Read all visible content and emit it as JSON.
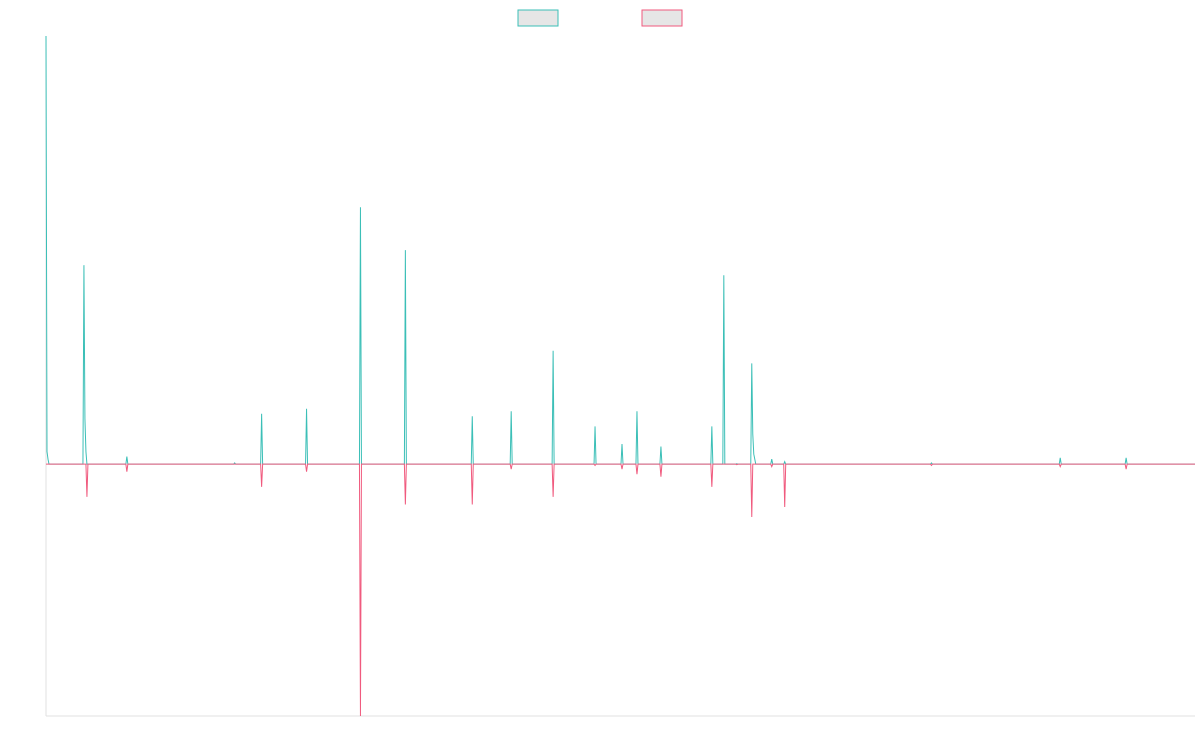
{
  "chart_data": {
    "type": "line",
    "title": "",
    "xlabel": "",
    "ylabel": "",
    "grid": false,
    "legend_position": "top-center",
    "colors": {
      "series_1_stroke": "#3bbfb7",
      "series_2_stroke": "#f05a7e",
      "legend_fill": "#e6e6e6",
      "axis": "#e0e0e0"
    },
    "x_count": 1152,
    "ylim": [
      -1.0,
      1.7
    ],
    "series": [
      {
        "name": "",
        "color": "#3bbfb7",
        "baseline": 0,
        "spikes": [
          [
            0,
            1.7
          ],
          [
            1,
            0.05
          ],
          [
            2,
            0.02
          ],
          [
            38,
            0.79
          ],
          [
            39,
            0.18
          ],
          [
            40,
            0.05
          ],
          [
            81,
            0.03
          ],
          [
            189,
            0.005
          ],
          [
            216,
            0.2
          ],
          [
            261,
            0.22
          ],
          [
            315,
            1.02
          ],
          [
            360,
            0.85
          ],
          [
            427,
            0.19
          ],
          [
            466,
            0.21
          ],
          [
            508,
            0.45
          ],
          [
            550,
            0.15
          ],
          [
            577,
            0.08
          ],
          [
            592,
            0.21
          ],
          [
            616,
            0.07
          ],
          [
            667,
            0.15
          ],
          [
            679,
            0.75
          ],
          [
            692,
            0.002
          ],
          [
            707,
            0.4
          ],
          [
            708,
            0.12
          ],
          [
            709,
            0.04
          ],
          [
            710,
            0.02
          ],
          [
            727,
            0.02
          ],
          [
            740,
            0.01
          ],
          [
            887,
            0.005
          ],
          [
            1016,
            0.025
          ],
          [
            1082,
            0.025
          ]
        ]
      },
      {
        "name": "",
        "color": "#f05a7e",
        "baseline": 0,
        "spikes": [
          [
            41,
            -0.13
          ],
          [
            81,
            -0.03
          ],
          [
            216,
            -0.09
          ],
          [
            261,
            -0.03
          ],
          [
            315,
            -1.0
          ],
          [
            360,
            -0.16
          ],
          [
            427,
            -0.16
          ],
          [
            466,
            -0.02
          ],
          [
            508,
            -0.13
          ],
          [
            550,
            -0.005
          ],
          [
            577,
            -0.02
          ],
          [
            592,
            -0.04
          ],
          [
            616,
            -0.05
          ],
          [
            667,
            -0.09
          ],
          [
            692,
            -0.002
          ],
          [
            707,
            -0.21
          ],
          [
            727,
            -0.01
          ],
          [
            740,
            -0.17
          ],
          [
            887,
            -0.005
          ],
          [
            1016,
            -0.01
          ],
          [
            1082,
            -0.02
          ]
        ]
      }
    ]
  }
}
